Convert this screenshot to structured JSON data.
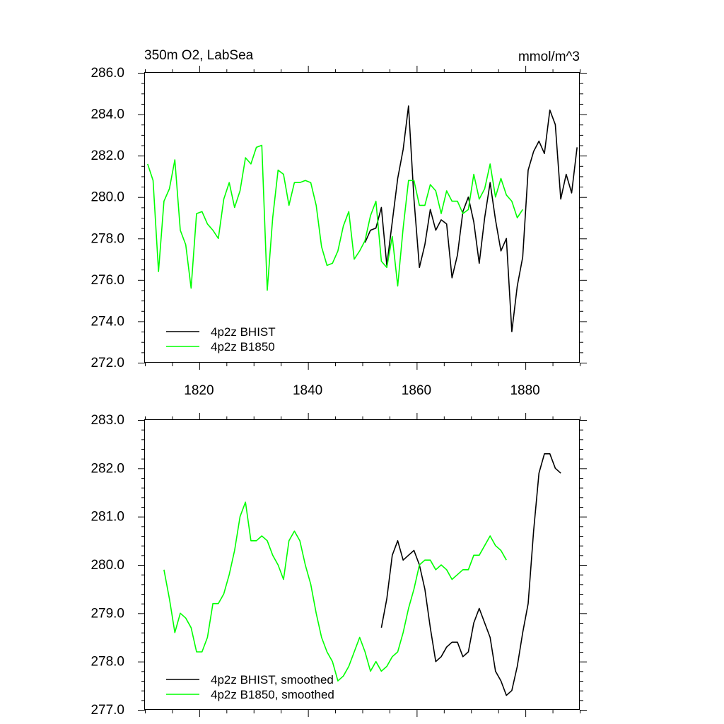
{
  "chart_data": [
    {
      "type": "line",
      "title_left": "350m O2, LabSea",
      "title_right": "mmol/m^3",
      "xlim": [
        1810,
        1890
      ],
      "ylim": [
        272.0,
        286.0
      ],
      "y_ticks": [
        "272.0",
        "274.0",
        "276.0",
        "278.0",
        "280.0",
        "282.0",
        "284.0",
        "286.0"
      ],
      "x_ticks": [
        "1820",
        "1840",
        "1860",
        "1880"
      ],
      "legend": [
        "4p2z BHIST",
        "4p2z B1850"
      ],
      "series": [
        {
          "name": "4p2z BHIST",
          "color": "#000000",
          "x": [
            1850.5,
            1851.5,
            1852.5,
            1853.5,
            1854.5,
            1855.5,
            1856.5,
            1857.5,
            1858.5,
            1859.5,
            1860.5,
            1861.5,
            1862.5,
            1863.5,
            1864.5,
            1865.5,
            1866.5,
            1867.5,
            1868.5,
            1869.5,
            1870.5,
            1871.5,
            1872.5,
            1873.5,
            1874.5,
            1875.5,
            1876.5,
            1877.5,
            1878.5,
            1879.5,
            1880.5,
            1881.5,
            1882.5,
            1883.5,
            1884.5,
            1885.5,
            1886.5,
            1887.5,
            1888.5,
            1889.5
          ],
          "values": [
            277.8,
            278.4,
            278.5,
            279.5,
            276.7,
            278.8,
            280.9,
            282.3,
            284.4,
            279.9,
            276.6,
            277.7,
            279.4,
            278.4,
            278.9,
            278.7,
            276.1,
            277.2,
            279.3,
            280.0,
            278.8,
            276.8,
            279.0,
            280.7,
            278.9,
            277.4,
            278.0,
            273.5,
            275.7,
            277.1,
            281.3,
            282.2,
            282.7,
            282.1,
            284.2,
            283.5,
            279.9,
            281.1,
            280.2,
            282.4
          ]
        },
        {
          "name": "4p2z B1850",
          "color": "#00ff00",
          "x": [
            1810.5,
            1811.5,
            1812.5,
            1813.5,
            1814.5,
            1815.5,
            1816.5,
            1817.5,
            1818.5,
            1819.5,
            1820.5,
            1821.5,
            1822.5,
            1823.5,
            1824.5,
            1825.5,
            1826.5,
            1827.5,
            1828.5,
            1829.5,
            1830.5,
            1831.5,
            1832.5,
            1833.5,
            1834.5,
            1835.5,
            1836.5,
            1837.5,
            1838.5,
            1839.5,
            1840.5,
            1841.5,
            1842.5,
            1843.5,
            1844.5,
            1845.5,
            1846.5,
            1847.5,
            1848.5,
            1849.5,
            1850.5,
            1851.5,
            1852.5,
            1853.5,
            1854.5,
            1855.5,
            1856.5,
            1857.5,
            1858.5,
            1859.5,
            1860.5,
            1861.5,
            1862.5,
            1863.5,
            1864.5,
            1865.5,
            1866.5,
            1867.5,
            1868.5,
            1869.5,
            1870.5,
            1871.5,
            1872.5,
            1873.5,
            1874.5,
            1875.5,
            1876.5,
            1877.5,
            1878.5,
            1879.5
          ],
          "values": [
            281.6,
            280.8,
            276.4,
            279.8,
            280.4,
            281.8,
            278.4,
            277.7,
            275.6,
            279.2,
            279.3,
            278.7,
            278.4,
            278.0,
            279.9,
            280.7,
            279.5,
            280.3,
            281.9,
            281.6,
            282.4,
            282.5,
            275.5,
            279.0,
            281.3,
            281.1,
            279.6,
            280.7,
            280.7,
            280.8,
            280.7,
            279.6,
            277.6,
            276.7,
            276.8,
            277.4,
            278.6,
            279.3,
            277.0,
            277.4,
            277.9,
            279.1,
            279.8,
            276.9,
            276.6,
            278.1,
            275.7,
            278.5,
            280.8,
            280.8,
            279.6,
            279.6,
            280.6,
            280.3,
            279.2,
            280.3,
            279.8,
            279.8,
            279.2,
            279.4,
            281.1,
            279.9,
            280.4,
            281.6,
            280.0,
            280.9,
            280.1,
            279.8,
            279.0,
            279.4
          ]
        }
      ]
    },
    {
      "type": "line",
      "xlim": [
        1810,
        1890
      ],
      "ylim": [
        277.0,
        283.0
      ],
      "y_ticks": [
        "277.0",
        "278.0",
        "279.0",
        "280.0",
        "281.0",
        "282.0",
        "283.0"
      ],
      "legend": [
        "4p2z BHIST, smoothed",
        "4p2z B1850, smoothed"
      ],
      "series": [
        {
          "name": "4p2z BHIST, smoothed",
          "color": "#000000",
          "x": [
            1853.5,
            1854.5,
            1855.5,
            1856.5,
            1857.5,
            1858.5,
            1859.5,
            1860.5,
            1861.5,
            1862.5,
            1863.5,
            1864.5,
            1865.5,
            1866.5,
            1867.5,
            1868.5,
            1869.5,
            1870.5,
            1871.5,
            1872.5,
            1873.5,
            1874.5,
            1875.5,
            1876.5,
            1877.5,
            1878.5,
            1879.5,
            1880.5,
            1881.5,
            1882.5,
            1883.5,
            1884.5,
            1885.5,
            1886.5
          ],
          "values": [
            278.7,
            279.3,
            280.2,
            280.5,
            280.1,
            280.2,
            280.3,
            280.0,
            279.5,
            278.7,
            278.0,
            278.1,
            278.3,
            278.4,
            278.4,
            278.1,
            278.2,
            278.8,
            279.1,
            278.8,
            278.5,
            277.8,
            277.6,
            277.3,
            277.4,
            277.9,
            278.6,
            279.2,
            280.7,
            281.9,
            282.3,
            282.3,
            282.0,
            281.9
          ]
        },
        {
          "name": "4p2z B1850, smoothed",
          "color": "#00ff00",
          "x": [
            1813.5,
            1814.5,
            1815.5,
            1816.5,
            1817.5,
            1818.5,
            1819.5,
            1820.5,
            1821.5,
            1822.5,
            1823.5,
            1824.5,
            1825.5,
            1826.5,
            1827.5,
            1828.5,
            1829.5,
            1830.5,
            1831.5,
            1832.5,
            1833.5,
            1834.5,
            1835.5,
            1836.5,
            1837.5,
            1838.5,
            1839.5,
            1840.5,
            1841.5,
            1842.5,
            1843.5,
            1844.5,
            1845.5,
            1846.5,
            1847.5,
            1848.5,
            1849.5,
            1850.5,
            1851.5,
            1852.5,
            1853.5,
            1854.5,
            1855.5,
            1856.5,
            1857.5,
            1858.5,
            1859.5,
            1860.5,
            1861.5,
            1862.5,
            1863.5,
            1864.5,
            1865.5,
            1866.5,
            1867.5,
            1868.5,
            1869.5,
            1870.5,
            1871.5,
            1872.5,
            1873.5,
            1874.5,
            1875.5,
            1876.5
          ],
          "values": [
            279.9,
            279.3,
            278.6,
            279.0,
            278.9,
            278.7,
            278.2,
            278.2,
            278.5,
            279.2,
            279.2,
            279.4,
            279.8,
            280.3,
            281.0,
            281.3,
            280.5,
            280.5,
            280.6,
            280.5,
            280.2,
            280.0,
            279.7,
            280.5,
            280.7,
            280.5,
            280.0,
            279.6,
            279.0,
            278.5,
            278.2,
            278.0,
            277.6,
            277.7,
            277.9,
            278.2,
            278.5,
            278.2,
            277.8,
            278.0,
            277.8,
            277.9,
            278.1,
            278.2,
            278.6,
            279.1,
            279.5,
            280.0,
            280.1,
            280.1,
            279.9,
            280.0,
            279.9,
            279.7,
            279.8,
            279.9,
            279.9,
            280.2,
            280.2,
            280.4,
            280.6,
            280.4,
            280.3,
            280.1
          ]
        }
      ]
    }
  ]
}
